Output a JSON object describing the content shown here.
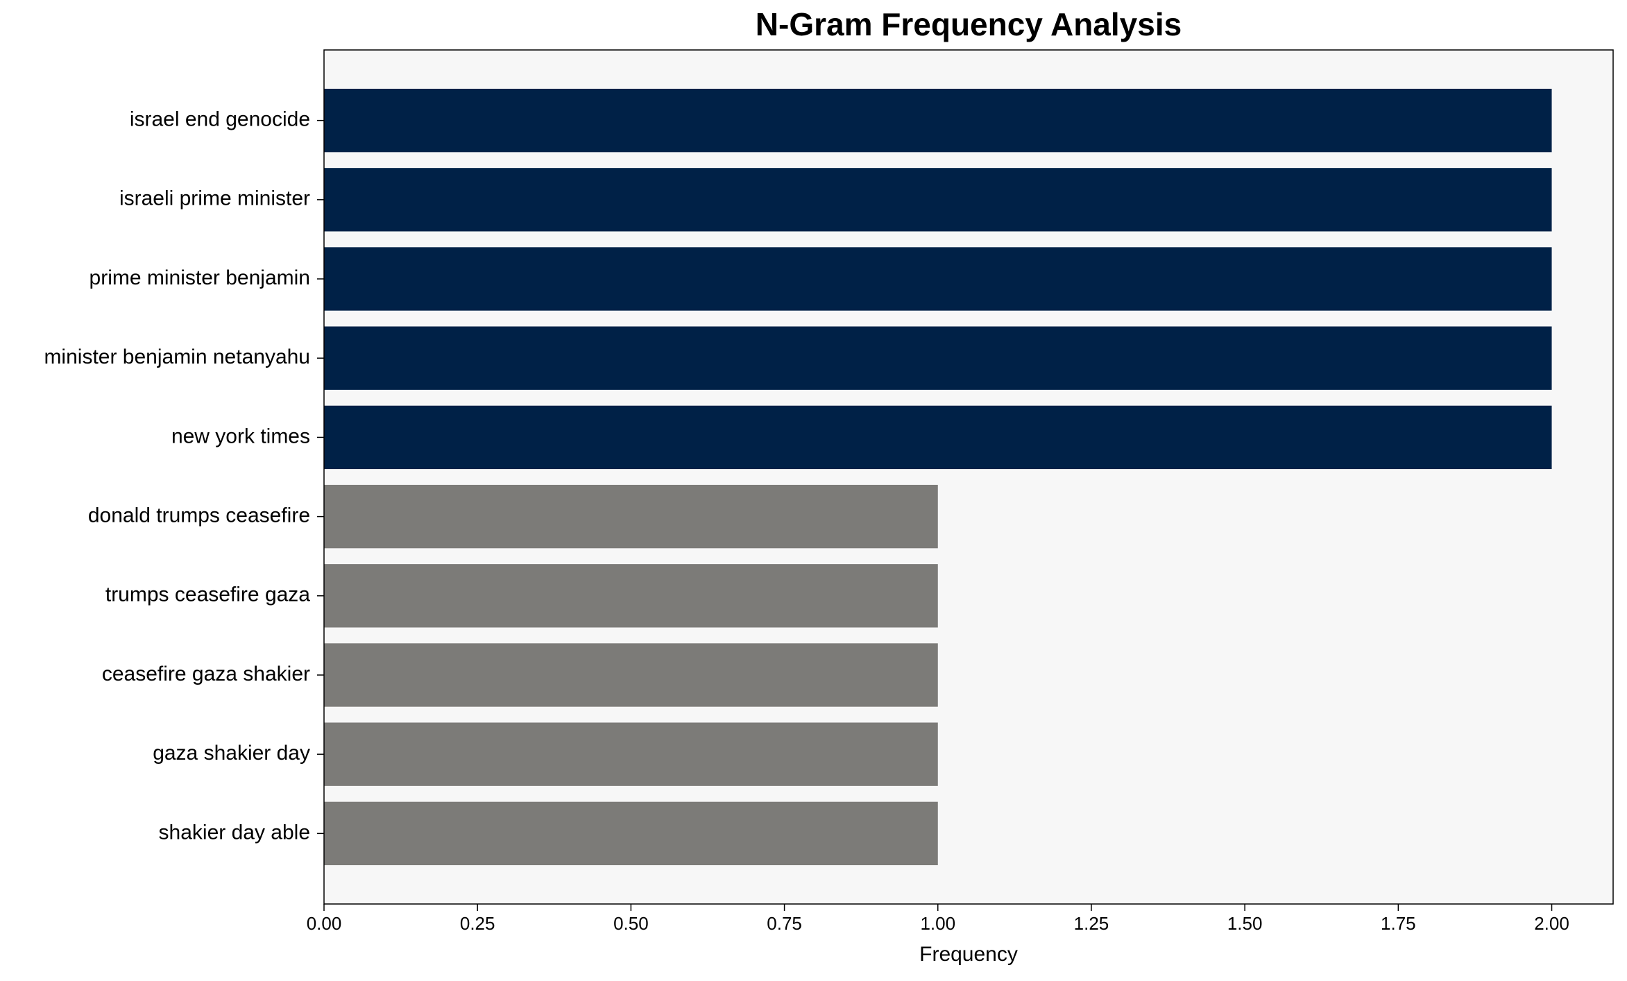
{
  "chart_data": {
    "type": "barh",
    "title": "N-Gram Frequency Analysis",
    "xlabel": "Frequency",
    "categories": [
      "israel end genocide",
      "israeli prime minister",
      "prime minister benjamin",
      "minister benjamin netanyahu",
      "new york times",
      "donald trumps ceasefire",
      "trumps ceasefire gaza",
      "ceasefire gaza shakier",
      "gaza shakier day",
      "shakier day able"
    ],
    "values": [
      2,
      2,
      2,
      2,
      2,
      1,
      1,
      1,
      1,
      1
    ],
    "colors": [
      "#002147",
      "#002147",
      "#002147",
      "#002147",
      "#002147",
      "#7c7b78",
      "#7c7b78",
      "#7c7b78",
      "#7c7b78",
      "#7c7b78"
    ],
    "xlim": [
      0,
      2.1
    ],
    "xticks": [
      {
        "value": 0,
        "label": "0.00"
      },
      {
        "value": 0.25,
        "label": "0.25"
      },
      {
        "value": 0.5,
        "label": "0.50"
      },
      {
        "value": 0.75,
        "label": "0.75"
      },
      {
        "value": 1,
        "label": "1.00"
      },
      {
        "value": 1.25,
        "label": "1.25"
      },
      {
        "value": 1.5,
        "label": "1.50"
      },
      {
        "value": 1.75,
        "label": "1.75"
      },
      {
        "value": 2,
        "label": "2.00"
      }
    ],
    "grid": false
  }
}
